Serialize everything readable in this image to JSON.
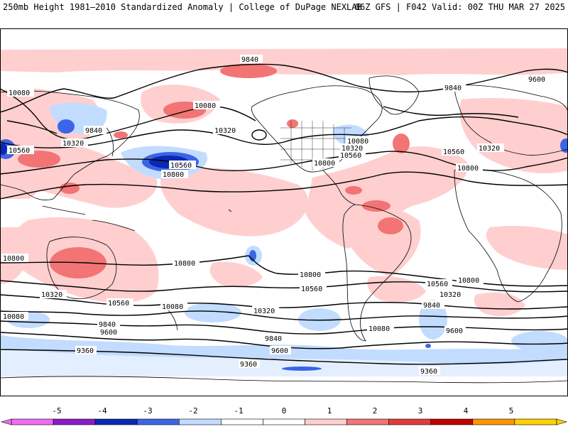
{
  "header": {
    "left": "250mb Height 1981–2010 Standardized Anomaly | College of DuPage NEXLAB",
    "right": "06Z GFS | F042 Valid: 00Z THU MAR 27 2025"
  },
  "map": {
    "type": "global standardized anomaly map with height contours",
    "projection": "cylindrical",
    "contour_labels": [
      "9360",
      "9600",
      "9840",
      "10080",
      "10320",
      "10560",
      "10800"
    ],
    "colors": {
      "neg5": "#f06cf0",
      "neg4": "#8c1cc8",
      "neg3": "#0a28b4",
      "neg2": "#3c64e6",
      "neg1": "#c2dcff",
      "zero": "#ffffff",
      "pos1": "#ffcfcf",
      "pos2": "#f27474",
      "pos3": "#e03c3c",
      "pos4": "#c00000",
      "pos5": "#ff9600",
      "pos6": "#ffd200",
      "contour": "#000000",
      "coast": "#000000"
    }
  },
  "colorbar": {
    "ticks": [
      "-5",
      "-4",
      "-3",
      "-2",
      "-1",
      "0",
      "1",
      "2",
      "3",
      "4",
      "5"
    ]
  }
}
